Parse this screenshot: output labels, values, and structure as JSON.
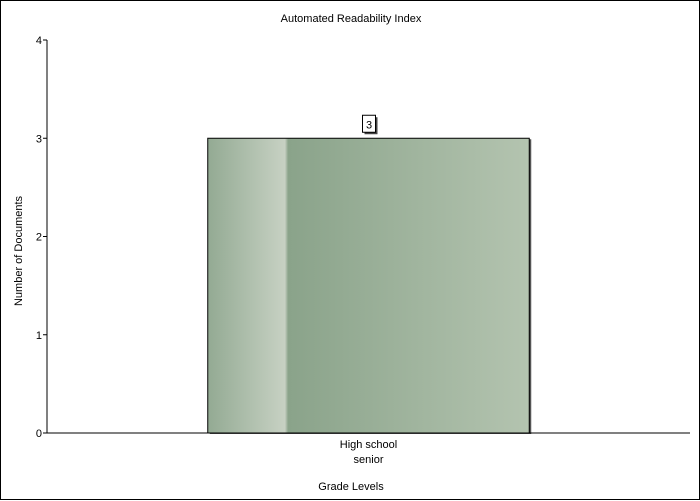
{
  "chart_data": {
    "type": "bar",
    "title": "Automated Readability Index",
    "xlabel": "Grade Levels",
    "ylabel": "Number of Documents",
    "categories": [
      [
        "High school",
        "senior"
      ]
    ],
    "values": [
      3
    ],
    "data_labels": [
      "3"
    ],
    "ylim": [
      0,
      4
    ],
    "yticks": [
      "0",
      "1",
      "2",
      "3",
      "4"
    ],
    "grid": false,
    "legend": "none"
  },
  "colors": {
    "bar_dark": "#8aa38a",
    "bar_light": "#b4c4b0",
    "bar_highlight": "#c8d2c4",
    "axis": "#000000"
  }
}
